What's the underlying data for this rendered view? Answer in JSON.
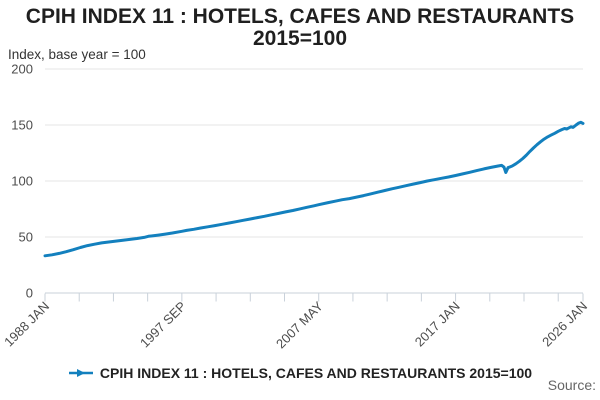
{
  "header": {
    "title_line1": "CPIH INDEX 11 : HOTELS, CAFES AND RESTAURANTS",
    "title_line2": "2015=100",
    "subtitle": "Index, base year = 100"
  },
  "legend": {
    "label": "CPIH INDEX 11 : HOTELS, CAFES AND RESTAURANTS 2015=100",
    "marker": "line-with-right-arrow"
  },
  "footer": {
    "source_label": "Source:"
  },
  "colors": {
    "series_blue": "#1380be",
    "grid": "#e4e4e4",
    "axis": "#c9d1da",
    "tick_text": "#4d4d4d"
  },
  "chart_data": {
    "type": "line",
    "title": "CPIH INDEX 11 : HOTELS, CAFES AND RESTAURANTS 2015=100",
    "ylabel": "Index, base year = 100",
    "xlabel": "",
    "ylim": [
      0,
      200
    ],
    "yticks": [
      0,
      50,
      100,
      150,
      200
    ],
    "xlim": [
      1988.0,
      2026.0
    ],
    "minor_tick_step_months": 29,
    "grid": "horizontal",
    "legend_position": "bottom",
    "xtick_labels": [
      {
        "x": 1988.0,
        "label": "1988 JAN"
      },
      {
        "x": 1997.6667,
        "label": "1997 SEP"
      },
      {
        "x": 2007.3333,
        "label": "2007 MAY"
      },
      {
        "x": 2017.0,
        "label": "2017 JAN"
      },
      {
        "x": 2026.0,
        "label": "2026 JAN"
      }
    ],
    "series": [
      {
        "name": "CPIH INDEX 11 : HOTELS, CAFES AND RESTAURANTS 2015=100",
        "color": "#1380be",
        "points": [
          [
            1988.0,
            33.2
          ],
          [
            1988.5,
            34.1
          ],
          [
            1989.0,
            35.4
          ],
          [
            1989.5,
            36.9
          ],
          [
            1990.0,
            38.7
          ],
          [
            1990.5,
            40.6
          ],
          [
            1991.0,
            42.3
          ],
          [
            1991.5,
            43.6
          ],
          [
            1992.0,
            44.7
          ],
          [
            1992.5,
            45.5
          ],
          [
            1993.0,
            46.3
          ],
          [
            1993.5,
            47.1
          ],
          [
            1994.0,
            47.9
          ],
          [
            1994.5,
            48.7
          ],
          [
            1995.0,
            49.6
          ],
          [
            1995.3,
            50.6
          ],
          [
            1995.5,
            50.9
          ],
          [
            1996.0,
            51.7
          ],
          [
            1996.5,
            52.6
          ],
          [
            1997.0,
            53.6
          ],
          [
            1997.67,
            55.1
          ],
          [
            1998.0,
            55.9
          ],
          [
            1998.5,
            56.9
          ],
          [
            1999.0,
            58.0
          ],
          [
            1999.5,
            59.1
          ],
          [
            2000.0,
            60.2
          ],
          [
            2000.5,
            61.3
          ],
          [
            2001.0,
            62.5
          ],
          [
            2001.5,
            63.7
          ],
          [
            2002.0,
            64.9
          ],
          [
            2002.5,
            66.1
          ],
          [
            2003.0,
            67.3
          ],
          [
            2003.5,
            68.5
          ],
          [
            2004.0,
            69.8
          ],
          [
            2004.5,
            71.1
          ],
          [
            2005.0,
            72.4
          ],
          [
            2005.5,
            73.7
          ],
          [
            2006.0,
            75.1
          ],
          [
            2006.5,
            76.5
          ],
          [
            2007.0,
            77.9
          ],
          [
            2007.33,
            78.8
          ],
          [
            2008.0,
            80.7
          ],
          [
            2008.5,
            82.0
          ],
          [
            2009.0,
            83.3
          ],
          [
            2009.5,
            84.3
          ],
          [
            2010.0,
            85.6
          ],
          [
            2010.5,
            87.0
          ],
          [
            2011.0,
            88.5
          ],
          [
            2011.5,
            90.0
          ],
          [
            2012.0,
            91.5
          ],
          [
            2012.5,
            93.0
          ],
          [
            2013.0,
            94.4
          ],
          [
            2013.5,
            95.8
          ],
          [
            2014.0,
            97.2
          ],
          [
            2014.5,
            98.6
          ],
          [
            2015.0,
            100.0
          ],
          [
            2015.5,
            101.2
          ],
          [
            2016.0,
            102.4
          ],
          [
            2016.5,
            103.6
          ],
          [
            2017.0,
            104.9
          ],
          [
            2017.5,
            106.3
          ],
          [
            2018.0,
            107.8
          ],
          [
            2018.5,
            109.3
          ],
          [
            2019.0,
            110.8
          ],
          [
            2019.5,
            112.1
          ],
          [
            2020.0,
            113.4
          ],
          [
            2020.25,
            113.9
          ],
          [
            2020.42,
            112.4
          ],
          [
            2020.55,
            107.6
          ],
          [
            2020.7,
            111.9
          ],
          [
            2021.0,
            113.4
          ],
          [
            2021.25,
            115.4
          ],
          [
            2021.5,
            117.6
          ],
          [
            2021.75,
            120.1
          ],
          [
            2022.0,
            123.1
          ],
          [
            2022.25,
            126.4
          ],
          [
            2022.5,
            129.5
          ],
          [
            2022.75,
            132.4
          ],
          [
            2023.0,
            135.0
          ],
          [
            2023.25,
            137.4
          ],
          [
            2023.5,
            139.4
          ],
          [
            2023.75,
            141.0
          ],
          [
            2024.0,
            142.6
          ],
          [
            2024.25,
            144.4
          ],
          [
            2024.5,
            145.9
          ],
          [
            2024.7,
            146.9
          ],
          [
            2024.85,
            146.4
          ],
          [
            2025.0,
            147.4
          ],
          [
            2025.15,
            148.4
          ],
          [
            2025.3,
            147.9
          ],
          [
            2025.5,
            149.9
          ],
          [
            2025.7,
            151.8
          ],
          [
            2025.85,
            152.4
          ],
          [
            2026.0,
            151.4
          ]
        ]
      }
    ]
  }
}
